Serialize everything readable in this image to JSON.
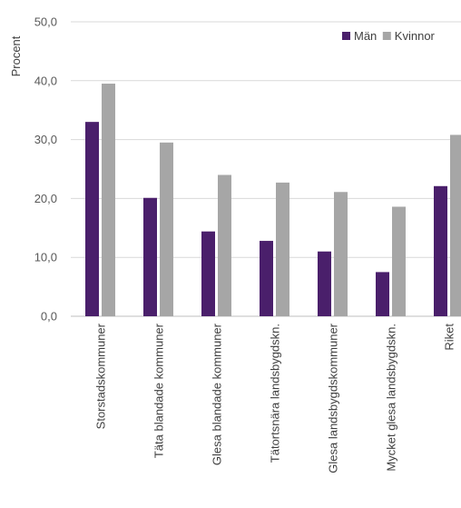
{
  "chart_data": {
    "type": "bar",
    "title": "",
    "xlabel": "",
    "ylabel": "Procent",
    "ylim": [
      0,
      50
    ],
    "yticks": [
      "0,0",
      "10,0",
      "20,0",
      "30,0",
      "40,0",
      "50,0"
    ],
    "grid": true,
    "legend_position": "top-right",
    "categories": [
      "Storstadskommuner",
      "Täta blandade kommuner",
      "Glesa blandade kommuner",
      "Tätortsnära landsbygdskn.",
      "Glesa landsbygdskommuner",
      "Mycket glesa landsbygdskn.",
      "Riket"
    ],
    "series": [
      {
        "name": "Män",
        "color": "#4a1f6b",
        "values": [
          33.0,
          20.1,
          14.4,
          12.8,
          11.0,
          7.5,
          22.1
        ]
      },
      {
        "name": "Kvinnor",
        "color": "#a6a6a6",
        "values": [
          39.5,
          29.5,
          24.0,
          22.7,
          21.1,
          18.6,
          30.8
        ]
      }
    ]
  }
}
